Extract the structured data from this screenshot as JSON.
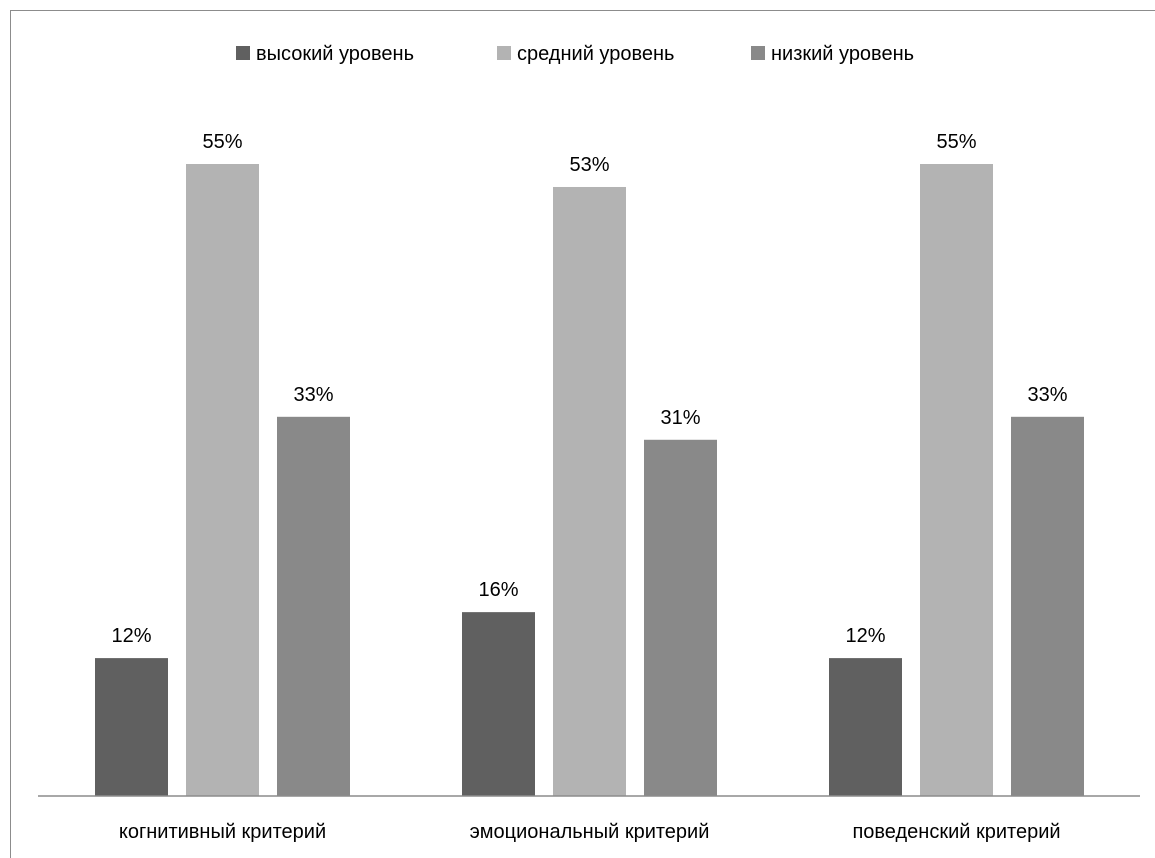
{
  "chart_data": {
    "type": "bar",
    "categories": [
      "когнитивный критерий",
      "эмоциональный критерий",
      "поведенский критерий"
    ],
    "series": [
      {
        "name": "высокий уровень",
        "color": "#606060",
        "values": [
          12,
          16,
          12
        ],
        "labels": [
          "12%",
          "16%",
          "12%"
        ]
      },
      {
        "name": "средний уровень",
        "color": "#b3b3b3",
        "values": [
          55,
          53,
          55
        ],
        "labels": [
          "55%",
          "53%",
          "55%"
        ]
      },
      {
        "name": "низкий уровень",
        "color": "#898989",
        "values": [
          33,
          31,
          33
        ],
        "labels": [
          "33%",
          "31%",
          "33%"
        ]
      }
    ],
    "ylim": [
      0,
      60
    ],
    "unit": "%",
    "legend_position": "top",
    "grid": false
  }
}
